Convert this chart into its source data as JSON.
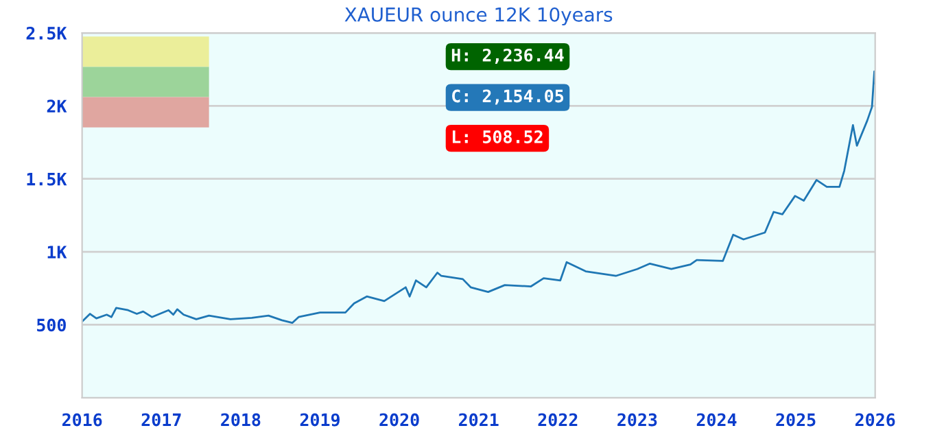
{
  "chart_data": {
    "type": "line",
    "title": "XAUEUR ounce 12K 10years",
    "x": [
      2016.0,
      2016.1,
      2016.18,
      2016.31,
      2016.37,
      2016.43,
      2016.58,
      2016.69,
      2016.77,
      2016.88,
      2017.09,
      2017.15,
      2017.2,
      2017.28,
      2017.44,
      2017.6,
      2017.87,
      2018.14,
      2018.35,
      2018.52,
      2018.65,
      2018.73,
      2019.0,
      2019.32,
      2019.43,
      2019.59,
      2019.81,
      2020.08,
      2020.13,
      2020.21,
      2020.34,
      2020.48,
      2020.53,
      2020.8,
      2020.9,
      2021.12,
      2021.33,
      2021.66,
      2021.82,
      2022.03,
      2022.11,
      2022.35,
      2022.73,
      2023.0,
      2023.16,
      2023.43,
      2023.67,
      2023.75,
      2024.08,
      2024.21,
      2024.34,
      2024.61,
      2024.72,
      2024.83,
      2024.99,
      2025.1,
      2025.26,
      2025.39,
      2025.55,
      2025.61,
      2025.72,
      2025.77,
      2025.9,
      2025.96,
      2025.99,
      2026.0
    ],
    "series": [
      {
        "color": "#1f77b4",
        "values": [
          522,
          575,
          544,
          569,
          553,
          616,
          600,
          575,
          591,
          553,
          600,
          569,
          606,
          569,
          538,
          563,
          538,
          547,
          563,
          531,
          513,
          553,
          584,
          584,
          647,
          694,
          663,
          757,
          694,
          804,
          757,
          857,
          835,
          813,
          757,
          725,
          772,
          763,
          819,
          804,
          929,
          866,
          835,
          882,
          919,
          882,
          913,
          944,
          938,
          1117,
          1085,
          1132,
          1273,
          1257,
          1383,
          1351,
          1492,
          1445,
          1445,
          1555,
          1868,
          1727,
          1899,
          1993,
          2236,
          2154
        ]
      }
    ],
    "xlim": [
      2016,
      2026
    ],
    "xticks": [
      2016,
      2017,
      2018,
      2019,
      2020,
      2021,
      2022,
      2023,
      2024,
      2025,
      2026
    ],
    "ylim": [
      0,
      2500
    ],
    "yticks": [
      {
        "value": 500,
        "label": "500"
      },
      {
        "value": 1000,
        "label": "1K"
      },
      {
        "value": 1500,
        "label": "1.5K"
      },
      {
        "value": 2000,
        "label": "2K"
      },
      {
        "value": 2500,
        "label": "2.5K"
      }
    ],
    "grid": "y",
    "legend": false,
    "annotations": [
      "H: 2,236.44",
      "C: 2,154.05",
      "L: 508.52"
    ]
  }
}
